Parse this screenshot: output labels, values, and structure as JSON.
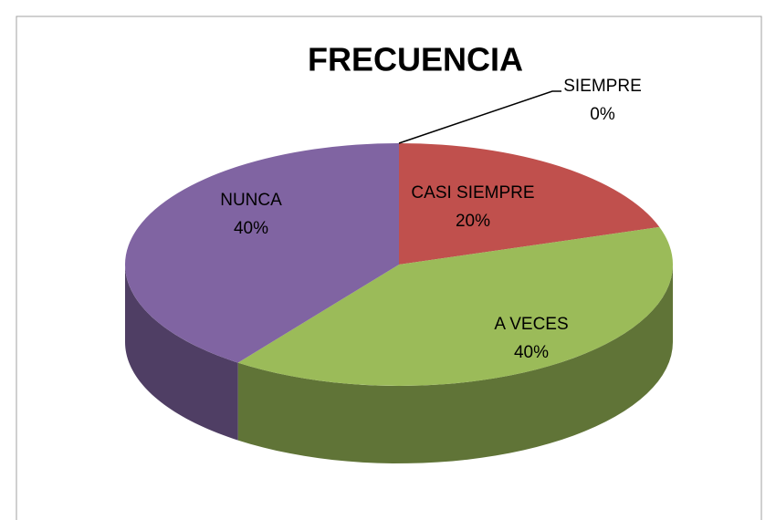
{
  "chart_data": {
    "type": "pie",
    "title": "FRECUENCIA",
    "categories": [
      "SIEMPRE",
      "CASI SIEMPRE",
      "A VECES",
      "NUNCA"
    ],
    "values": [
      0,
      20,
      40,
      40
    ],
    "value_labels": [
      "0%",
      "20%",
      "40%",
      "40%"
    ],
    "colors": [
      "#4f81bd",
      "#c0504d",
      "#9bbb59",
      "#8064a2"
    ]
  }
}
